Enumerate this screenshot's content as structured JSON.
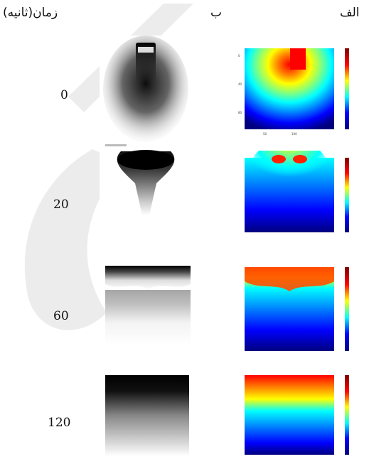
{
  "headers": {
    "time_label": "زمان(ثانیه)",
    "col_b": "ب",
    "col_alef": "الف"
  },
  "rows": [
    {
      "time": "0"
    },
    {
      "time": "20"
    },
    {
      "time": "60"
    },
    {
      "time": "120"
    }
  ],
  "colors": {
    "watermark": "#e6e6e6",
    "colormap": [
      "#00007f",
      "#0000ff",
      "#0080ff",
      "#00ffff",
      "#80ff80",
      "#ffff00",
      "#ff8000",
      "#ff0000",
      "#7f0000"
    ]
  }
}
